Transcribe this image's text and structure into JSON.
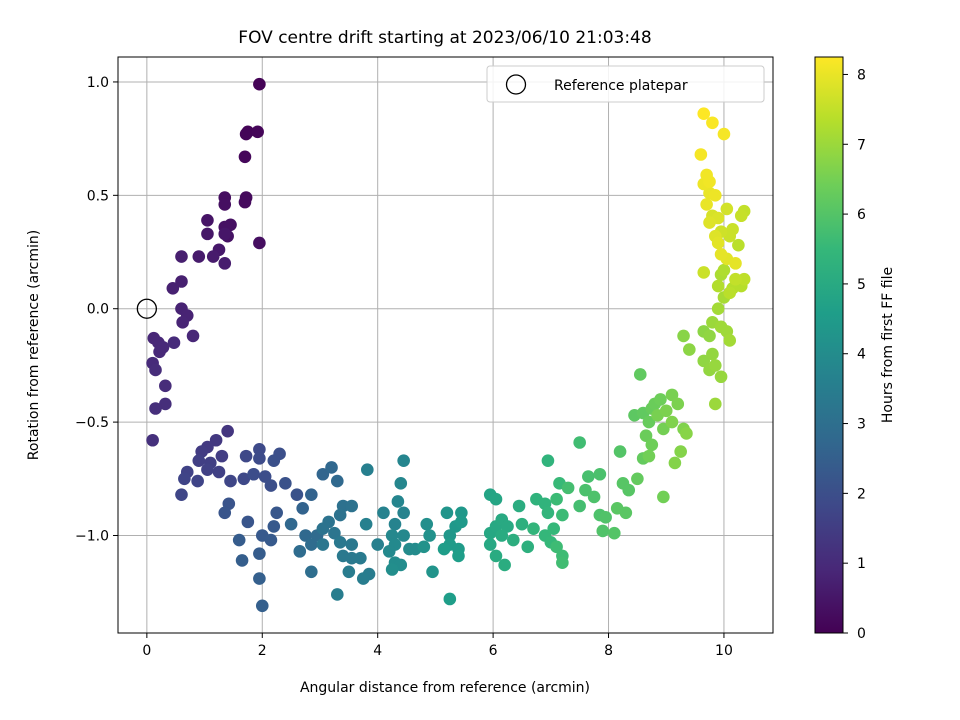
{
  "chart_data": {
    "type": "scatter",
    "title": "FOV centre drift starting at 2023/06/10 21:03:48",
    "xlabel": "Angular distance from reference (arcmin)",
    "ylabel": "Rotation from reference (arcmin)",
    "xlim": [
      -0.5,
      10.85
    ],
    "ylim": [
      -1.43,
      1.11
    ],
    "xticks": [
      0,
      2,
      4,
      6,
      8,
      10
    ],
    "yticks": [
      -1.0,
      -0.5,
      0.0,
      0.5,
      1.0
    ],
    "xtick_labels": [
      "0",
      "2",
      "4",
      "6",
      "8",
      "10"
    ],
    "ytick_labels": [
      "−1.0",
      "−0.5",
      "0.0",
      "0.5",
      "1.0"
    ],
    "grid": true,
    "legend": {
      "position": "top-right",
      "entries": [
        "Reference platepar"
      ]
    },
    "reference_point": {
      "x": 0,
      "y": 0,
      "label": "Reference platepar"
    },
    "colorbar": {
      "label": "Hours from first FF file",
      "range": [
        0,
        8.25
      ],
      "ticks": [
        0,
        1,
        2,
        3,
        4,
        5,
        6,
        7,
        8
      ],
      "tick_labels": [
        "0",
        "1",
        "2",
        "3",
        "4",
        "5",
        "6",
        "7",
        "8"
      ],
      "colormap": "viridis",
      "colors": [
        "#440154",
        "#482878",
        "#3e4989",
        "#31688e",
        "#26828e",
        "#1f9e89",
        "#35b779",
        "#6ece58",
        "#b5de2b",
        "#fde725"
      ]
    },
    "points": [
      [
        1.95,
        0.99,
        0.05
      ],
      [
        1.75,
        0.78,
        0.08
      ],
      [
        1.72,
        0.77,
        0.1
      ],
      [
        1.92,
        0.78,
        0.12
      ],
      [
        1.7,
        0.67,
        0.15
      ],
      [
        1.72,
        0.49,
        0.2
      ],
      [
        1.7,
        0.47,
        0.22
      ],
      [
        1.35,
        0.49,
        0.3
      ],
      [
        1.35,
        0.46,
        0.32
      ],
      [
        1.45,
        0.37,
        0.35
      ],
      [
        1.35,
        0.36,
        0.37
      ],
      [
        1.4,
        0.32,
        0.4
      ],
      [
        1.95,
        0.29,
        0.3
      ],
      [
        1.05,
        0.39,
        0.45
      ],
      [
        1.35,
        0.33,
        0.5
      ],
      [
        1.05,
        0.33,
        0.52
      ],
      [
        1.25,
        0.26,
        0.55
      ],
      [
        1.15,
        0.23,
        0.6
      ],
      [
        0.9,
        0.23,
        0.62
      ],
      [
        1.35,
        0.2,
        0.65
      ],
      [
        0.6,
        0.23,
        0.7
      ],
      [
        0.6,
        0.12,
        0.72
      ],
      [
        0.45,
        0.09,
        0.75
      ],
      [
        0.6,
        0.0,
        0.8
      ],
      [
        0.7,
        -0.03,
        0.82
      ],
      [
        0.62,
        -0.06,
        0.85
      ],
      [
        0.8,
        -0.12,
        0.9
      ],
      [
        0.12,
        -0.13,
        0.9
      ],
      [
        0.2,
        -0.15,
        0.92
      ],
      [
        0.28,
        -0.17,
        0.95
      ],
      [
        0.22,
        -0.19,
        0.95
      ],
      [
        0.47,
        -0.15,
        1.0
      ],
      [
        0.1,
        -0.24,
        1.0
      ],
      [
        0.15,
        -0.27,
        1.05
      ],
      [
        0.32,
        -0.34,
        1.05
      ],
      [
        0.32,
        -0.42,
        1.1
      ],
      [
        0.15,
        -0.44,
        1.1
      ],
      [
        0.1,
        -0.58,
        1.15
      ],
      [
        1.4,
        -0.54,
        1.3
      ],
      [
        1.2,
        -0.58,
        1.35
      ],
      [
        1.05,
        -0.61,
        1.4
      ],
      [
        0.95,
        -0.63,
        1.45
      ],
      [
        1.3,
        -0.65,
        1.5
      ],
      [
        1.1,
        -0.68,
        1.55
      ],
      [
        0.9,
        -0.67,
        1.55
      ],
      [
        1.05,
        -0.71,
        1.6
      ],
      [
        1.25,
        -0.72,
        1.6
      ],
      [
        0.7,
        -0.72,
        1.65
      ],
      [
        0.65,
        -0.75,
        1.7
      ],
      [
        0.88,
        -0.76,
        1.7
      ],
      [
        0.6,
        -0.82,
        1.75
      ],
      [
        1.45,
        -0.76,
        1.75
      ],
      [
        1.68,
        -0.75,
        1.8
      ],
      [
        1.72,
        -0.65,
        1.8
      ],
      [
        1.95,
        -0.62,
        1.85
      ],
      [
        1.95,
        -0.66,
        1.9
      ],
      [
        1.85,
        -0.73,
        1.95
      ],
      [
        2.05,
        -0.74,
        1.95
      ],
      [
        2.15,
        -0.78,
        2.0
      ],
      [
        2.3,
        -0.64,
        2.0
      ],
      [
        2.2,
        -0.67,
        2.05
      ],
      [
        2.4,
        -0.77,
        2.1
      ],
      [
        2.6,
        -0.82,
        2.1
      ],
      [
        1.42,
        -0.86,
        2.15
      ],
      [
        1.35,
        -0.9,
        2.2
      ],
      [
        1.75,
        -0.94,
        2.2
      ],
      [
        2.25,
        -0.9,
        2.25
      ],
      [
        2.2,
        -0.96,
        2.3
      ],
      [
        2.0,
        -1.0,
        2.3
      ],
      [
        2.15,
        -1.02,
        2.35
      ],
      [
        1.6,
        -1.02,
        2.4
      ],
      [
        1.95,
        -1.08,
        2.4
      ],
      [
        1.65,
        -1.11,
        2.45
      ],
      [
        1.95,
        -1.19,
        2.5
      ],
      [
        2.0,
        -1.31,
        2.5
      ],
      [
        2.85,
        -0.82,
        2.6
      ],
      [
        2.7,
        -0.88,
        2.6
      ],
      [
        3.05,
        -0.73,
        2.7
      ],
      [
        3.2,
        -0.7,
        2.75
      ],
      [
        3.3,
        -0.76,
        2.8
      ],
      [
        2.5,
        -0.95,
        2.75
      ],
      [
        2.75,
        -1.0,
        2.8
      ],
      [
        2.95,
        -1.0,
        2.85
      ],
      [
        2.85,
        -1.04,
        2.9
      ],
      [
        2.65,
        -1.07,
        2.9
      ],
      [
        2.85,
        -1.16,
        2.95
      ],
      [
        3.4,
        -0.87,
        3.05
      ],
      [
        3.55,
        -0.87,
        3.1
      ],
      [
        3.35,
        -0.91,
        3.1
      ],
      [
        3.15,
        -0.94,
        3.15
      ],
      [
        3.05,
        -0.97,
        3.15
      ],
      [
        3.25,
        -0.99,
        3.2
      ],
      [
        3.05,
        -1.04,
        3.25
      ],
      [
        3.35,
        -1.03,
        3.3
      ],
      [
        3.55,
        -1.04,
        3.3
      ],
      [
        3.4,
        -1.09,
        3.35
      ],
      [
        3.55,
        -1.1,
        3.35
      ],
      [
        3.7,
        -1.1,
        3.4
      ],
      [
        3.5,
        -1.16,
        3.45
      ],
      [
        3.85,
        -1.17,
        3.45
      ],
      [
        3.75,
        -1.19,
        3.5
      ],
      [
        3.3,
        -1.26,
        3.5
      ],
      [
        3.82,
        -0.71,
        3.55
      ],
      [
        3.8,
        -0.95,
        3.6
      ],
      [
        4.0,
        -1.04,
        3.6
      ],
      [
        4.1,
        -0.9,
        3.65
      ],
      [
        4.3,
        -0.95,
        3.7
      ],
      [
        4.45,
        -0.9,
        3.7
      ],
      [
        4.35,
        -0.85,
        3.75
      ],
      [
        4.45,
        -0.67,
        3.75
      ],
      [
        4.4,
        -0.77,
        3.8
      ],
      [
        4.25,
        -1.0,
        3.85
      ],
      [
        4.45,
        -1.0,
        3.85
      ],
      [
        4.3,
        -1.04,
        3.9
      ],
      [
        4.2,
        -1.07,
        3.9
      ],
      [
        4.55,
        -1.06,
        3.95
      ],
      [
        4.65,
        -1.06,
        3.95
      ],
      [
        4.3,
        -1.12,
        4.0
      ],
      [
        4.4,
        -1.13,
        4.0
      ],
      [
        4.25,
        -1.15,
        4.05
      ],
      [
        4.85,
        -0.95,
        4.1
      ],
      [
        4.9,
        -1.0,
        4.15
      ],
      [
        4.8,
        -1.05,
        4.2
      ],
      [
        4.95,
        -1.16,
        4.25
      ],
      [
        5.2,
        -0.9,
        4.3
      ],
      [
        5.25,
        -1.0,
        4.35
      ],
      [
        5.35,
        -0.96,
        4.4
      ],
      [
        5.45,
        -0.9,
        4.4
      ],
      [
        5.45,
        -0.94,
        4.45
      ],
      [
        5.25,
        -1.04,
        4.5
      ],
      [
        5.4,
        -1.06,
        4.5
      ],
      [
        5.15,
        -1.06,
        4.55
      ],
      [
        5.4,
        -1.09,
        4.6
      ],
      [
        5.25,
        -1.28,
        4.6
      ],
      [
        5.95,
        -0.82,
        4.8
      ],
      [
        6.05,
        -0.84,
        4.85
      ],
      [
        5.95,
        -0.99,
        4.9
      ],
      [
        6.05,
        -0.96,
        4.95
      ],
      [
        5.95,
        -1.04,
        4.95
      ],
      [
        6.15,
        -0.93,
        5.0
      ],
      [
        6.25,
        -0.96,
        5.0
      ],
      [
        6.15,
        -1.0,
        5.05
      ],
      [
        6.05,
        -1.09,
        5.05
      ],
      [
        6.2,
        -1.13,
        5.1
      ],
      [
        6.45,
        -0.87,
        5.1
      ],
      [
        6.35,
        -1.02,
        5.15
      ],
      [
        6.5,
        -0.95,
        5.2
      ],
      [
        6.6,
        -1.05,
        5.2
      ],
      [
        6.75,
        -0.84,
        5.3
      ],
      [
        6.95,
        -0.67,
        5.35
      ],
      [
        6.9,
        -0.86,
        5.35
      ],
      [
        6.95,
        -0.9,
        5.4
      ],
      [
        6.7,
        -0.97,
        5.4
      ],
      [
        6.9,
        -1.0,
        5.45
      ],
      [
        7.05,
        -0.97,
        5.5
      ],
      [
        7.0,
        -1.03,
        5.5
      ],
      [
        7.15,
        -0.77,
        5.55
      ],
      [
        7.1,
        -0.84,
        5.6
      ],
      [
        7.2,
        -0.91,
        5.6
      ],
      [
        7.1,
        -1.05,
        5.65
      ],
      [
        7.2,
        -1.09,
        5.65
      ],
      [
        7.2,
        -1.12,
        5.7
      ],
      [
        7.5,
        -0.59,
        5.7
      ],
      [
        7.3,
        -0.79,
        5.75
      ],
      [
        7.5,
        -0.87,
        5.75
      ],
      [
        7.65,
        -0.74,
        5.8
      ],
      [
        7.85,
        -0.73,
        5.85
      ],
      [
        7.6,
        -0.8,
        5.85
      ],
      [
        7.75,
        -0.83,
        5.9
      ],
      [
        7.85,
        -0.91,
        5.9
      ],
      [
        7.95,
        -0.92,
        5.95
      ],
      [
        7.9,
        -0.98,
        5.95
      ],
      [
        8.1,
        -0.99,
        6.0
      ],
      [
        8.2,
        -0.63,
        6.0
      ],
      [
        8.25,
        -0.77,
        6.05
      ],
      [
        8.35,
        -0.8,
        6.05
      ],
      [
        8.3,
        -0.9,
        6.1
      ],
      [
        8.15,
        -0.88,
        6.1
      ],
      [
        8.45,
        -0.47,
        6.15
      ],
      [
        8.55,
        -0.29,
        6.2
      ],
      [
        8.6,
        -0.46,
        6.2
      ],
      [
        8.5,
        -0.75,
        6.25
      ],
      [
        8.6,
        -0.66,
        6.25
      ],
      [
        8.75,
        -0.44,
        6.3
      ],
      [
        8.7,
        -0.5,
        6.3
      ],
      [
        8.8,
        -0.42,
        6.35
      ],
      [
        8.65,
        -0.56,
        6.35
      ],
      [
        8.9,
        -0.4,
        6.4
      ],
      [
        8.75,
        -0.6,
        6.4
      ],
      [
        8.7,
        -0.65,
        6.45
      ],
      [
        8.95,
        -0.83,
        6.45
      ],
      [
        8.95,
        -0.53,
        6.5
      ],
      [
        9.1,
        -0.38,
        6.55
      ],
      [
        8.85,
        -0.47,
        6.55
      ],
      [
        9.0,
        -0.45,
        6.6
      ],
      [
        9.2,
        -0.42,
        6.6
      ],
      [
        9.1,
        -0.5,
        6.65
      ],
      [
        9.3,
        -0.53,
        6.65
      ],
      [
        9.25,
        -0.63,
        6.7
      ],
      [
        9.15,
        -0.68,
        6.7
      ],
      [
        9.35,
        -0.55,
        6.75
      ],
      [
        9.3,
        -0.12,
        6.75
      ],
      [
        9.4,
        -0.18,
        6.8
      ],
      [
        9.65,
        -0.1,
        6.8
      ],
      [
        9.75,
        -0.12,
        6.85
      ],
      [
        9.65,
        -0.23,
        6.85
      ],
      [
        9.8,
        -0.2,
        6.9
      ],
      [
        9.75,
        -0.27,
        6.9
      ],
      [
        9.85,
        -0.25,
        6.95
      ],
      [
        9.95,
        -0.3,
        6.95
      ],
      [
        9.85,
        -0.42,
        7.0
      ],
      [
        9.8,
        -0.06,
        7.0
      ],
      [
        9.95,
        -0.08,
        7.05
      ],
      [
        10.05,
        -0.1,
        7.05
      ],
      [
        10.1,
        -0.14,
        7.1
      ],
      [
        9.9,
        0.0,
        7.1
      ],
      [
        10.0,
        0.05,
        7.15
      ],
      [
        9.95,
        0.15,
        7.2
      ],
      [
        10.0,
        0.17,
        7.25
      ],
      [
        9.9,
        0.1,
        7.3
      ],
      [
        10.15,
        0.09,
        7.35
      ],
      [
        10.3,
        0.1,
        7.35
      ],
      [
        10.1,
        0.07,
        7.4
      ],
      [
        10.25,
        0.28,
        7.4
      ],
      [
        10.35,
        0.13,
        7.45
      ],
      [
        10.2,
        0.13,
        7.5
      ],
      [
        10.35,
        0.43,
        7.5
      ],
      [
        10.3,
        0.41,
        7.55
      ],
      [
        10.15,
        0.35,
        7.6
      ],
      [
        10.1,
        0.32,
        7.6
      ],
      [
        9.95,
        0.34,
        7.65
      ],
      [
        10.05,
        0.44,
        7.7
      ],
      [
        9.8,
        0.41,
        7.75
      ],
      [
        9.9,
        0.4,
        7.8
      ],
      [
        9.75,
        0.38,
        7.85
      ],
      [
        9.85,
        0.32,
        7.85
      ],
      [
        9.9,
        0.29,
        7.9
      ],
      [
        10.05,
        0.22,
        7.9
      ],
      [
        10.2,
        0.2,
        7.95
      ],
      [
        9.95,
        0.24,
        7.95
      ],
      [
        9.75,
        0.51,
        8.0
      ],
      [
        9.7,
        0.46,
        8.0
      ],
      [
        9.85,
        0.5,
        8.05
      ],
      [
        9.65,
        0.55,
        8.05
      ],
      [
        9.75,
        0.56,
        8.1
      ],
      [
        9.7,
        0.59,
        8.1
      ],
      [
        9.6,
        0.68,
        8.15
      ],
      [
        10.0,
        0.77,
        8.15
      ],
      [
        9.8,
        0.82,
        8.2
      ],
      [
        9.65,
        0.86,
        8.25
      ],
      [
        9.65,
        0.16,
        7.6
      ]
    ]
  }
}
